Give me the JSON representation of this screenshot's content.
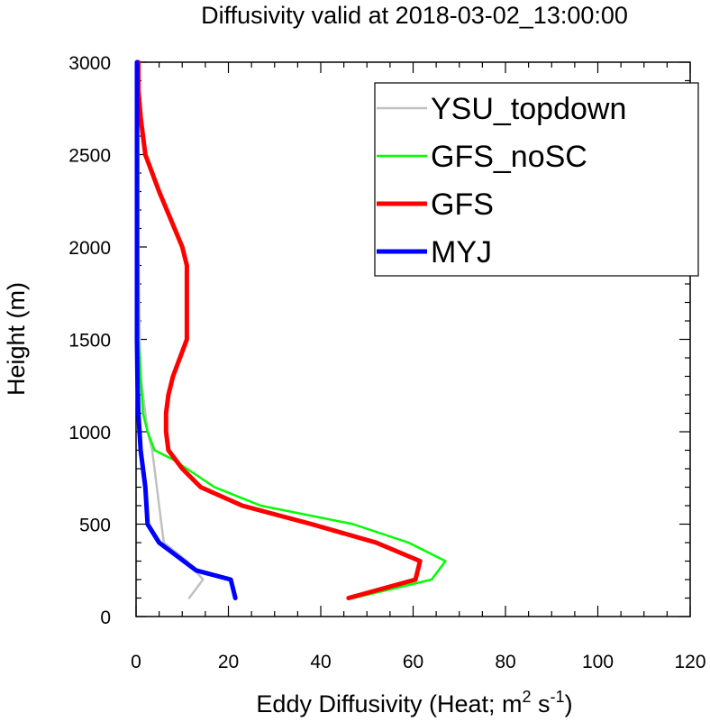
{
  "chart_data": {
    "type": "line",
    "title": "Diffusivity valid at 2018-03-02_13:00:00",
    "xlabel_main": "Eddy Diffusivity (Heat; m",
    "xlabel_sup1": "2",
    "xlabel_mid": " s",
    "xlabel_sup2": "-1",
    "xlabel_end": ")",
    "ylabel": "Height (m)",
    "xlim": [
      0,
      120
    ],
    "ylim": [
      0,
      3000
    ],
    "xticks": [
      0,
      20,
      40,
      60,
      80,
      100,
      120
    ],
    "yticks": [
      0,
      500,
      1000,
      1500,
      2000,
      2500,
      3000
    ],
    "grid": false,
    "legend_position": "top-right",
    "series": [
      {
        "name": "YSU_topdown",
        "color": "#c0c0c0",
        "width": 2.5,
        "points": [
          [
            11.5,
            100
          ],
          [
            14.5,
            200
          ],
          [
            11,
            300
          ],
          [
            6,
            400
          ],
          [
            5.5,
            500
          ],
          [
            5,
            600
          ],
          [
            4.5,
            700
          ],
          [
            4,
            800
          ],
          [
            3.5,
            900
          ],
          [
            2.5,
            1000
          ],
          [
            2,
            1100
          ],
          [
            1.5,
            1200
          ],
          [
            1,
            1300
          ],
          [
            0.8,
            1500
          ],
          [
            0.5,
            2000
          ],
          [
            0.5,
            2500
          ],
          [
            0.5,
            3000
          ]
        ]
      },
      {
        "name": "GFS_noSC",
        "color": "#00ff00",
        "width": 2.5,
        "points": [
          [
            47,
            100
          ],
          [
            64,
            200
          ],
          [
            67,
            300
          ],
          [
            59,
            400
          ],
          [
            47,
            500
          ],
          [
            27,
            600
          ],
          [
            17,
            700
          ],
          [
            11,
            800
          ],
          [
            8,
            850
          ],
          [
            4,
            900
          ],
          [
            2.5,
            1000
          ],
          [
            1.5,
            1100
          ],
          [
            1,
            1300
          ],
          [
            0.5,
            1500
          ],
          [
            0.5,
            2000
          ],
          [
            0.5,
            2500
          ],
          [
            0.5,
            3000
          ]
        ]
      },
      {
        "name": "GFS",
        "color": "#ff0000",
        "width": 5,
        "points": [
          [
            46,
            100
          ],
          [
            60.5,
            200
          ],
          [
            61.5,
            300
          ],
          [
            52,
            400
          ],
          [
            38,
            500
          ],
          [
            23,
            600
          ],
          [
            14,
            700
          ],
          [
            10,
            800
          ],
          [
            7,
            900
          ],
          [
            6.5,
            1000
          ],
          [
            6.5,
            1100
          ],
          [
            7,
            1200
          ],
          [
            8,
            1300
          ],
          [
            11,
            1500
          ],
          [
            11,
            1700
          ],
          [
            11,
            1900
          ],
          [
            10,
            2000
          ],
          [
            5,
            2300
          ],
          [
            2,
            2500
          ],
          [
            1,
            2700
          ],
          [
            0.5,
            2850
          ],
          [
            0.5,
            3000
          ]
        ]
      },
      {
        "name": "MYJ",
        "color": "#0000ff",
        "width": 5,
        "points": [
          [
            21.5,
            100
          ],
          [
            20.5,
            200
          ],
          [
            13,
            250
          ],
          [
            5,
            400
          ],
          [
            2.5,
            500
          ],
          [
            2,
            700
          ],
          [
            1,
            900
          ],
          [
            0.5,
            1100
          ],
          [
            0.3,
            1300
          ],
          [
            0.2,
            1500
          ],
          [
            0.2,
            2000
          ],
          [
            0.2,
            2500
          ],
          [
            0.2,
            3000
          ]
        ]
      }
    ]
  }
}
